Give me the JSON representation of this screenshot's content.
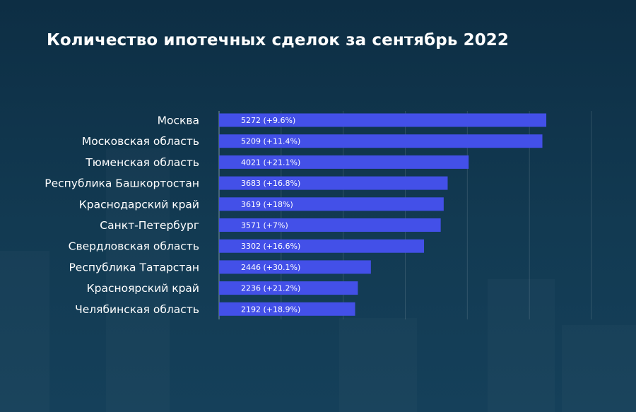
{
  "chart_data": {
    "type": "bar",
    "orientation": "horizontal",
    "title": "Количество ипотечных сделок за сентябрь 2022",
    "categories": [
      "Москва",
      "Московская область",
      "Тюменская область",
      "Республика Башкортостан",
      "Краснодарский край",
      "Санкт-Петербург",
      "Свердловская область",
      "Республика Татарстан",
      "Красноярский край",
      "Челябинская область"
    ],
    "values": [
      5272,
      5209,
      4021,
      3683,
      3619,
      3571,
      3302,
      2446,
      2236,
      2192
    ],
    "value_labels": [
      "5272 (+9.6%)",
      "5209 (+11.4%)",
      "4021 (+21.1%)",
      "3683 (+16.8%)",
      "3619 (+18%)",
      "3571 (+7%)",
      "3302 (+16.6%)",
      "2446 (+30.1%)",
      "2236 (+21.2%)",
      "2192 (+18.9%)"
    ],
    "xlim": [
      0,
      6000
    ],
    "grid": true,
    "bar_color": "#4350e8",
    "background_color": "#0f3148"
  }
}
